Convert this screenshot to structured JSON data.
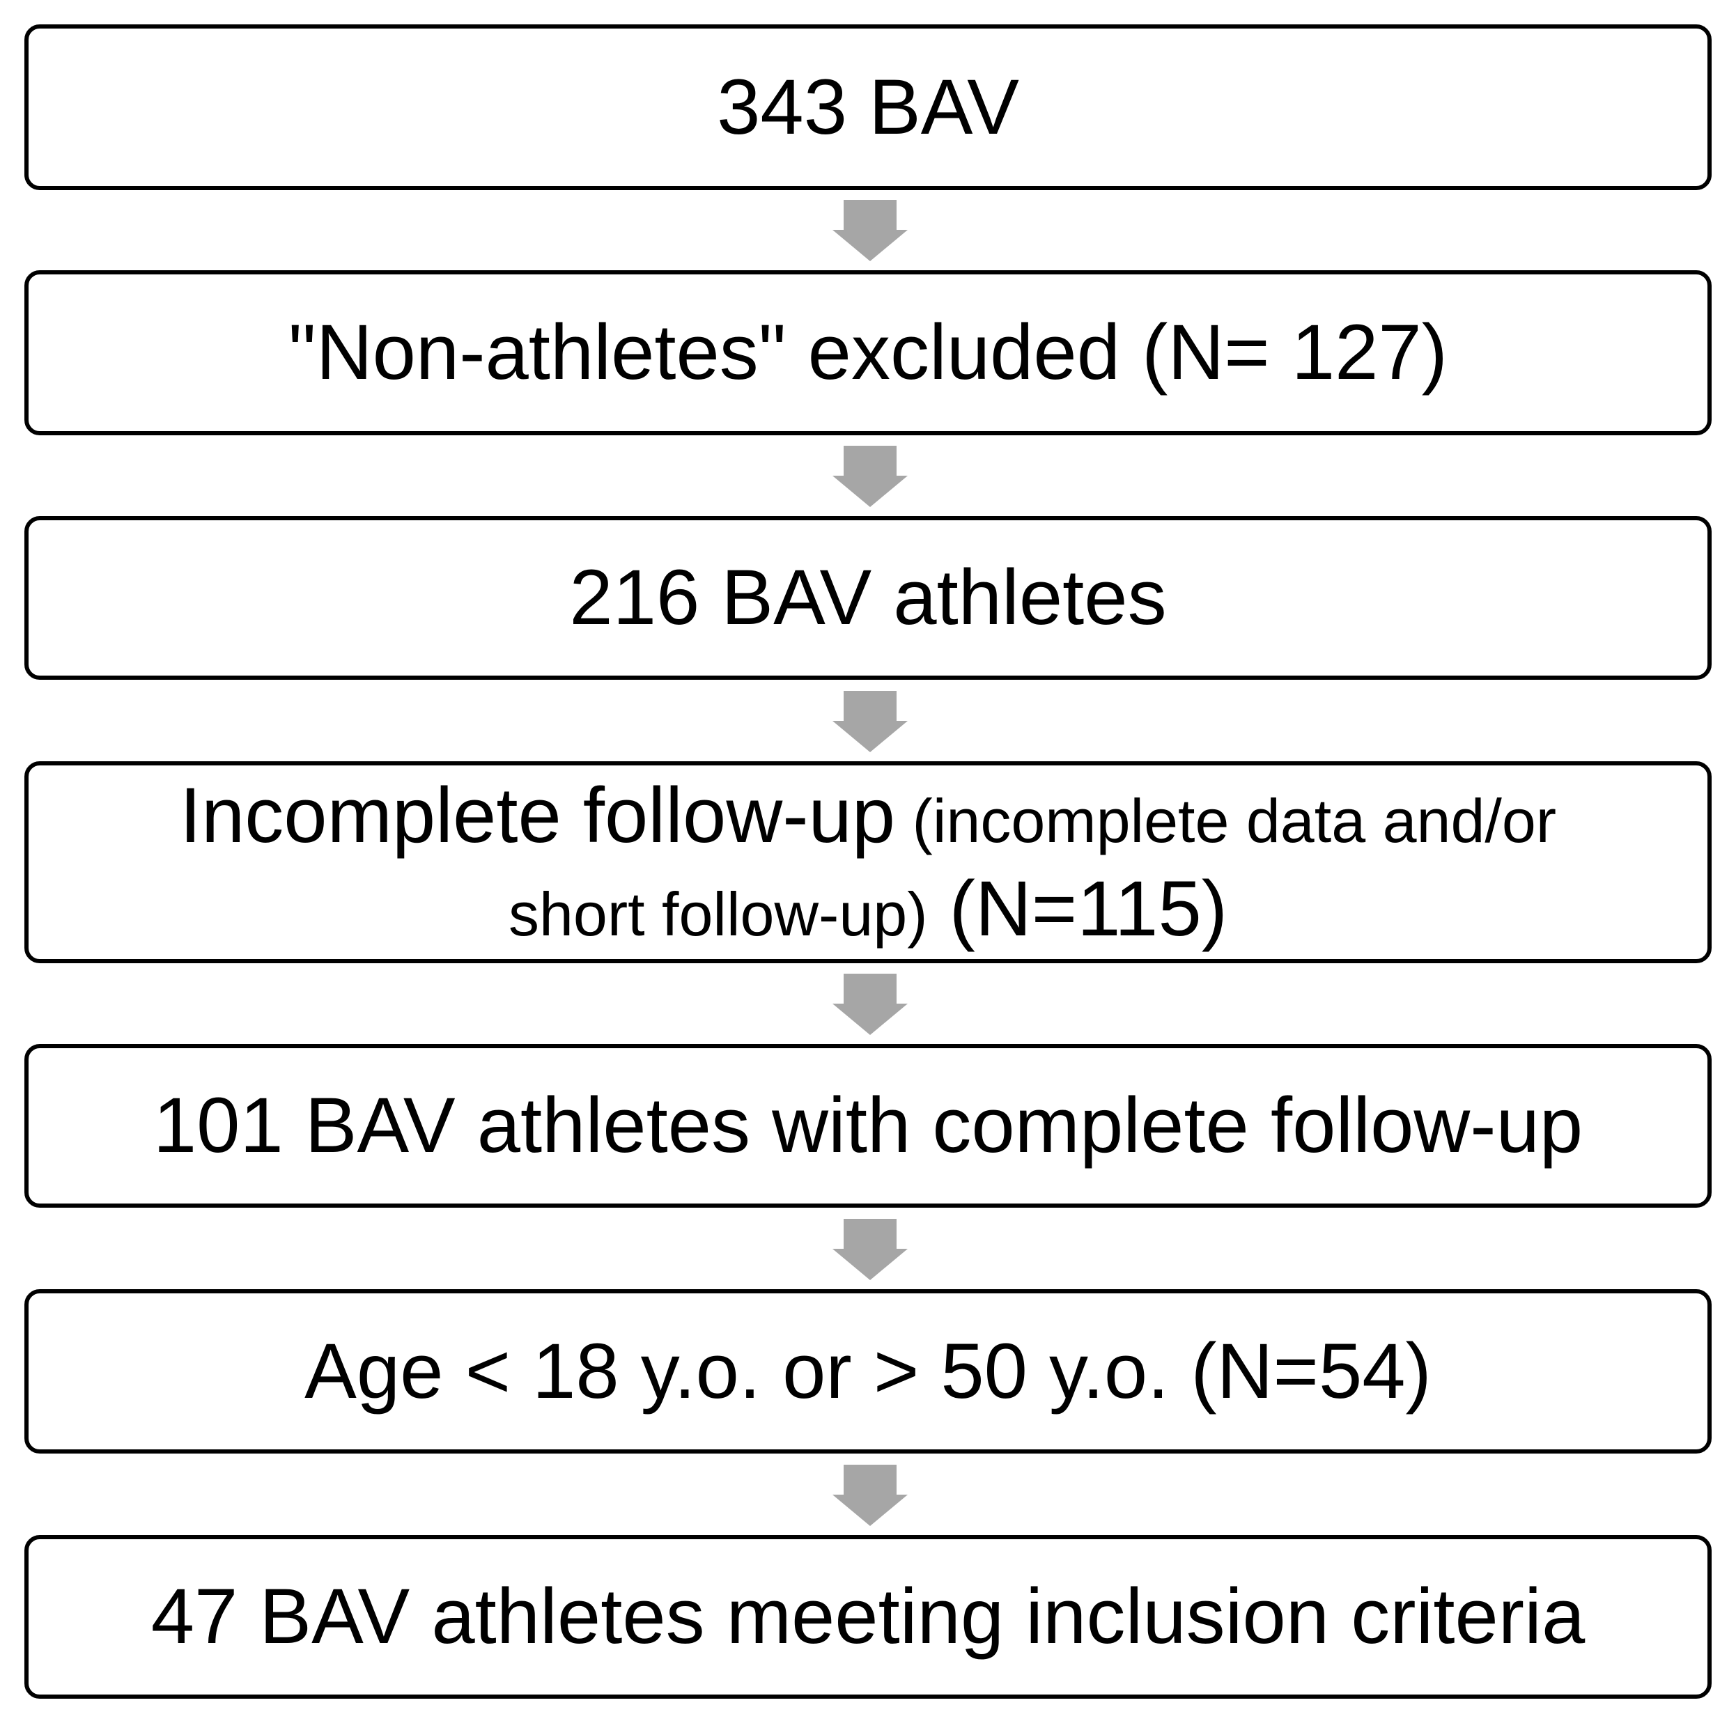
{
  "nodes": [
    {
      "label": "343 BAV"
    },
    {
      "label": "\"Non-athletes\" excluded (N= 127)"
    },
    {
      "label": "216 BAV athletes"
    },
    {
      "parts": [
        "Incomplete follow-up",
        " (incomplete data and/or short follow-up)",
        " (N=115)"
      ]
    },
    {
      "label": "101 BAV athletes with complete follow-up"
    },
    {
      "label": "Age < 18 y.o. or > 50 y.o. (N=54)"
    },
    {
      "label": "47 BAV athletes meeting inclusion criteria"
    }
  ]
}
